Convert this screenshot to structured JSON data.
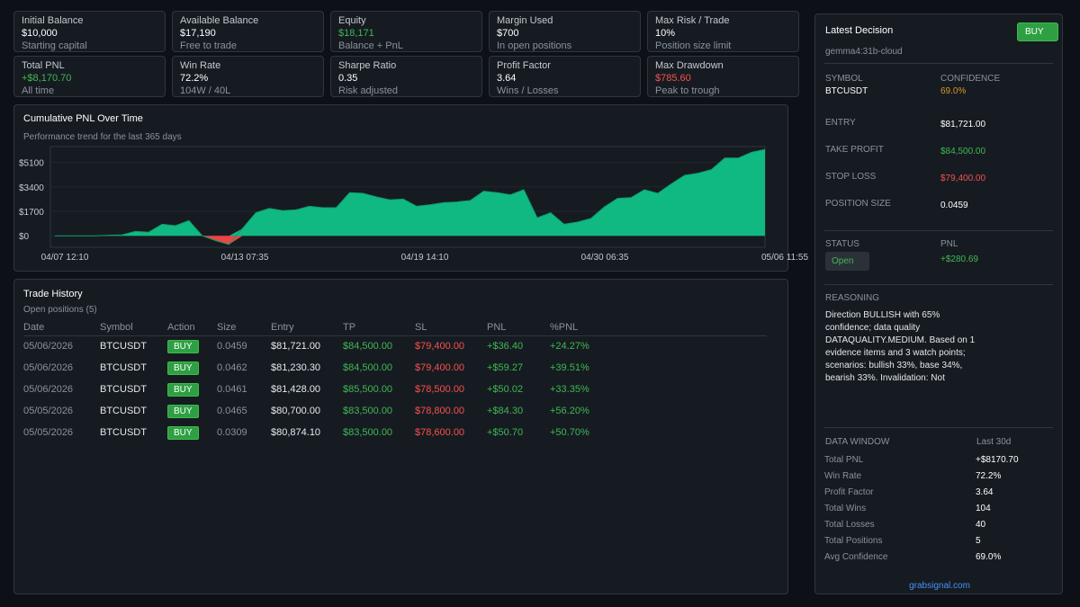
{
  "stats": [
    {
      "label": "Initial Balance",
      "value": "$10,000",
      "sub": "Starting capital",
      "tone": ""
    },
    {
      "label": "Available Balance",
      "value": "$17,190",
      "sub": "Free to trade",
      "tone": ""
    },
    {
      "label": "Equity",
      "value": "$18,171",
      "sub": "Balance + PnL",
      "tone": "green"
    },
    {
      "label": "Margin Used",
      "value": "$700",
      "sub": "In open positions",
      "tone": ""
    },
    {
      "label": "Max Risk / Trade",
      "value": "10%",
      "sub": "Position size limit",
      "tone": ""
    },
    {
      "label": "Total PNL",
      "value": "+$8,170.70",
      "sub": "All time",
      "tone": "green"
    },
    {
      "label": "Win Rate",
      "value": "72.2%",
      "sub": "104W / 40L",
      "tone": ""
    },
    {
      "label": "Sharpe Ratio",
      "value": "0.35",
      "sub": "Risk adjusted",
      "tone": ""
    },
    {
      "label": "Profit Factor",
      "value": "3.64",
      "sub": "Wins / Losses",
      "tone": ""
    },
    {
      "label": "Max Drawdown",
      "value": "$785.60",
      "sub": "Peak to trough",
      "tone": "red"
    }
  ],
  "chart_panel": {
    "title": "Cumulative PNL Over Time",
    "subtitle": "Performance trend for the last 365 days"
  },
  "chart_data": {
    "type": "area",
    "y_ticks": [
      "$5100",
      "$3400",
      "$1700",
      "$0"
    ],
    "y_tick_values": [
      5100,
      3400,
      1700,
      0
    ],
    "x_ticks": [
      "04/07 12:10",
      "04/13 07:35",
      "04/19 14:10",
      "04/30 06:35",
      "05/06 11:55"
    ],
    "ylim": [
      -800,
      6200
    ],
    "colors": {
      "positive": "#10b981",
      "negative": "#ef4444"
    },
    "values": [
      0,
      0,
      0,
      0,
      40,
      60,
      300,
      250,
      800,
      700,
      1050,
      0,
      -330,
      -600,
      500,
      1600,
      1900,
      1750,
      1800,
      2050,
      1950,
      1950,
      3000,
      2950,
      2700,
      2500,
      2550,
      2050,
      2150,
      2300,
      2350,
      2450,
      3100,
      3000,
      2850,
      3200,
      1250,
      1600,
      800,
      950,
      1200,
      2000,
      2600,
      2650,
      3200,
      2950,
      3600,
      4200,
      4350,
      4600,
      5400,
      5400,
      5800,
      6000
    ]
  },
  "trade_history": {
    "title": "Trade History",
    "subtitle": "Open positions (5)",
    "columns": [
      "Date",
      "Symbol",
      "Action",
      "Size",
      "Entry",
      "TP",
      "SL",
      "PNL",
      "%PNL"
    ],
    "rows": [
      {
        "date": "05/06/2026",
        "symbol": "BTCUSDT",
        "action": "BUY",
        "size": "0.0459",
        "entry": "$81,721.00",
        "tp": "$84,500.00",
        "sl": "$79,400.00",
        "pnl": "+$36.40",
        "pct": "+24.27%"
      },
      {
        "date": "05/06/2026",
        "symbol": "BTCUSDT",
        "action": "BUY",
        "size": "0.0462",
        "entry": "$81,230.30",
        "tp": "$84,500.00",
        "sl": "$79,400.00",
        "pnl": "+$59.27",
        "pct": "+39.51%"
      },
      {
        "date": "05/06/2026",
        "symbol": "BTCUSDT",
        "action": "BUY",
        "size": "0.0461",
        "entry": "$81,428.00",
        "tp": "$85,500.00",
        "sl": "$78,500.00",
        "pnl": "+$50.02",
        "pct": "+33.35%"
      },
      {
        "date": "05/05/2026",
        "symbol": "BTCUSDT",
        "action": "BUY",
        "size": "0.0465",
        "entry": "$80,700.00",
        "tp": "$83,500.00",
        "sl": "$78,800.00",
        "pnl": "+$84.30",
        "pct": "+56.20%"
      },
      {
        "date": "05/05/2026",
        "symbol": "BTCUSDT",
        "action": "BUY",
        "size": "0.0309",
        "entry": "$80,874.10",
        "tp": "$83,500.00",
        "sl": "$78,600.00",
        "pnl": "+$50.70",
        "pct": "+50.70%"
      }
    ]
  },
  "decision": {
    "title": "Latest Decision",
    "action": "BUY",
    "model": "gemma4:31b-cloud",
    "symbol_label": "SYMBOL",
    "symbol": "BTCUSDT",
    "confidence_label": "CONFIDENCE",
    "confidence": "69.0%",
    "entry_label": "ENTRY",
    "entry": "$81,721.00",
    "tp_label": "TAKE PROFIT",
    "tp": "$84,500.00",
    "sl_label": "STOP LOSS",
    "sl": "$79,400.00",
    "size_label": "POSITION SIZE",
    "size": "0.0459",
    "status_label": "STATUS",
    "status": "Open",
    "pnl_label": "PNL",
    "pnl": "+$280.69",
    "reasoning_label": "REASONING",
    "reasoning": "Direction BULLISH with 65% confidence; data quality DATAQUALITY.MEDIUM. Based on 1 evidence items and 3 watch points; scenarios: bullish 33%, base 34%, bearish 33%. Invalidation: Not",
    "window_label": "DATA WINDOW",
    "window": "Last 30d",
    "metrics": [
      {
        "label": "Total PNL",
        "value": "+$8170.70"
      },
      {
        "label": "Win Rate",
        "value": "72.2%"
      },
      {
        "label": "Profit Factor",
        "value": "3.64"
      },
      {
        "label": "Total Wins",
        "value": "104"
      },
      {
        "label": "Total Losses",
        "value": "40"
      },
      {
        "label": "Total Positions",
        "value": "5"
      },
      {
        "label": "Avg Confidence",
        "value": "69.0%"
      }
    ],
    "footer_link": "grabsignal.com"
  }
}
